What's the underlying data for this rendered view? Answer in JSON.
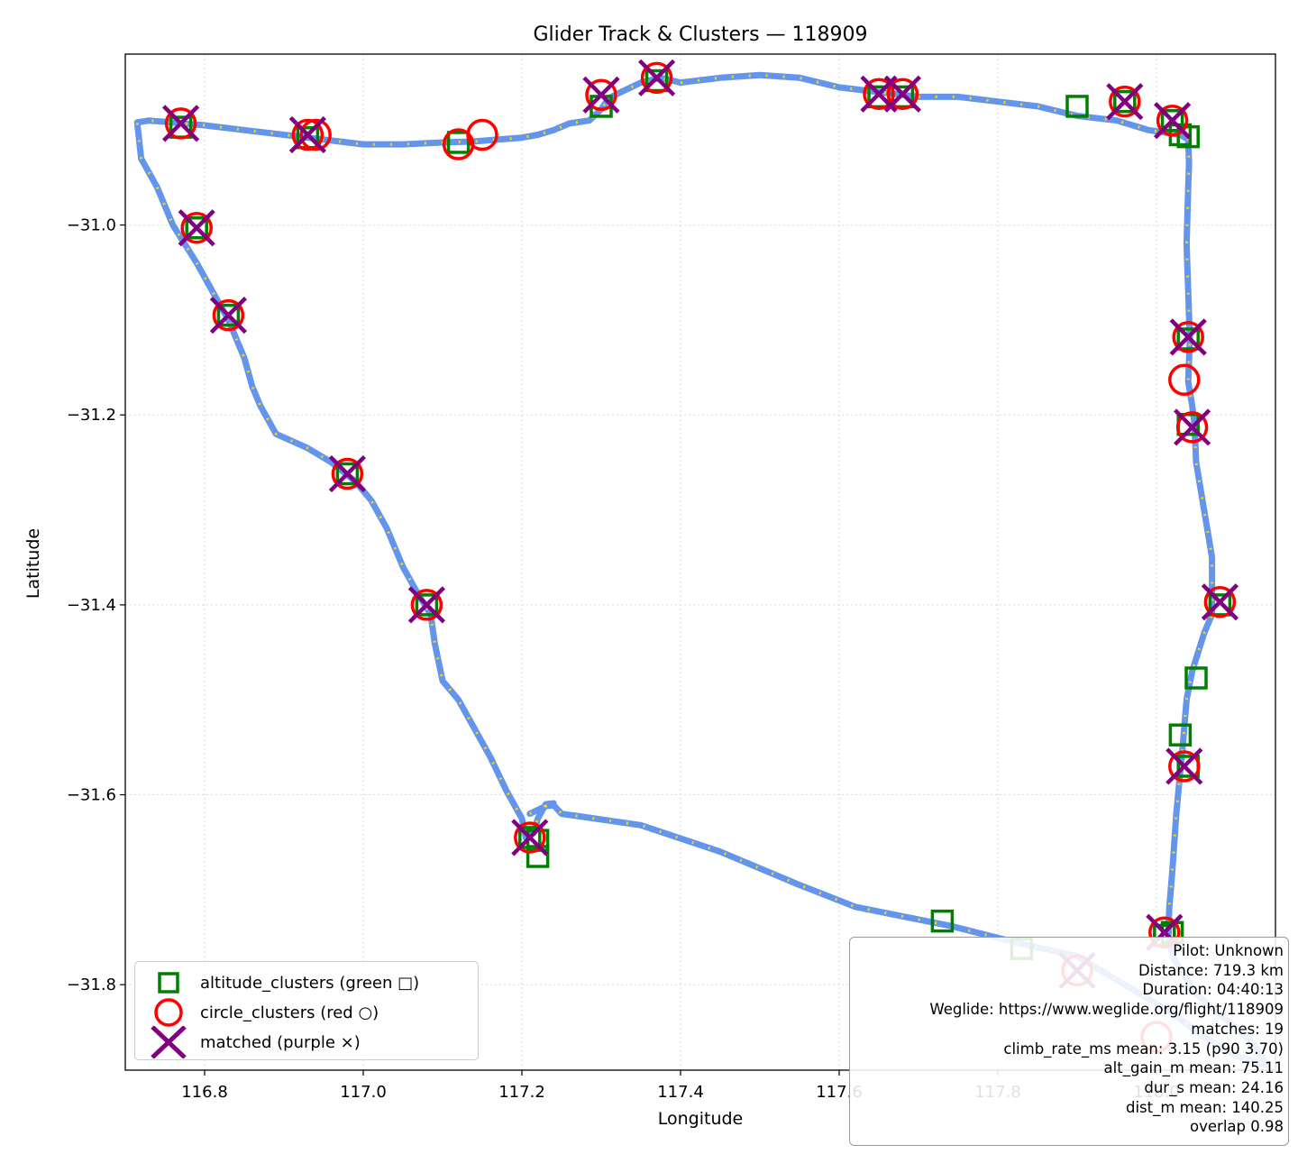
{
  "chart_data": {
    "type": "scatter",
    "title": "Glider Track & Clusters — 118909",
    "xlabel": "Longitude",
    "ylabel": "Latitude",
    "xlim": [
      116.7,
      118.15
    ],
    "ylim": [
      -31.89,
      -30.82
    ],
    "x_ticks": [
      116.8,
      117.0,
      117.2,
      117.4,
      117.6,
      117.8,
      118.0
    ],
    "x_tick_labels": [
      "116.8",
      "117.0",
      "117.2",
      "117.4",
      "117.6",
      "117.8",
      "118.0"
    ],
    "y_ticks": [
      -31.0,
      -31.2,
      -31.4,
      -31.6,
      -31.8
    ],
    "y_tick_labels": [
      "−31.0",
      "−31.2",
      "−31.4",
      "−31.6",
      "−31.8"
    ],
    "grid": true,
    "legend_position": "lower-left",
    "colors": {
      "track": "#6495ED",
      "track_highlight": "#FFD700",
      "altitude": "#008000",
      "circle": "#FF0000",
      "matched": "#800080"
    },
    "track": [
      [
        117.21,
        -31.62
      ],
      [
        117.23,
        -31.612
      ],
      [
        117.24,
        -31.611
      ],
      [
        117.25,
        -31.62
      ],
      [
        117.35,
        -31.632
      ],
      [
        117.45,
        -31.66
      ],
      [
        117.55,
        -31.695
      ],
      [
        117.62,
        -31.718
      ],
      [
        117.68,
        -31.728
      ],
      [
        117.74,
        -31.738
      ],
      [
        117.82,
        -31.755
      ],
      [
        117.9,
        -31.77
      ],
      [
        117.96,
        -31.8
      ],
      [
        118.02,
        -31.83
      ],
      [
        118.06,
        -31.855
      ],
      [
        118.1,
        -31.875
      ],
      [
        118.14,
        -31.885
      ],
      [
        118.12,
        -31.86
      ],
      [
        118.05,
        -31.81
      ],
      [
        118.02,
        -31.77
      ],
      [
        118.015,
        -31.75
      ],
      [
        118.016,
        -31.72
      ],
      [
        118.02,
        -31.68
      ],
      [
        118.025,
        -31.62
      ],
      [
        118.03,
        -31.575
      ],
      [
        118.033,
        -31.55
      ],
      [
        118.038,
        -31.5
      ],
      [
        118.045,
        -31.47
      ],
      [
        118.06,
        -31.43
      ],
      [
        118.07,
        -31.41
      ],
      [
        118.07,
        -31.35
      ],
      [
        118.06,
        -31.3
      ],
      [
        118.05,
        -31.25
      ],
      [
        118.048,
        -31.21
      ],
      [
        118.045,
        -31.19
      ],
      [
        118.04,
        -31.165
      ],
      [
        118.042,
        -31.12
      ],
      [
        118.04,
        -31.07
      ],
      [
        118.038,
        -31.02
      ],
      [
        118.04,
        -30.96
      ],
      [
        118.041,
        -30.935
      ],
      [
        118.04,
        -30.91
      ],
      [
        118.03,
        -30.905
      ],
      [
        117.99,
        -30.9
      ],
      [
        117.95,
        -30.89
      ],
      [
        117.9,
        -30.885
      ],
      [
        117.85,
        -30.875
      ],
      [
        117.8,
        -30.87
      ],
      [
        117.75,
        -30.865
      ],
      [
        117.7,
        -30.865
      ],
      [
        117.65,
        -30.86
      ],
      [
        117.6,
        -30.855
      ],
      [
        117.55,
        -30.845
      ],
      [
        117.5,
        -30.842
      ],
      [
        117.45,
        -30.845
      ],
      [
        117.4,
        -30.85
      ],
      [
        117.375,
        -30.845
      ],
      [
        117.35,
        -30.85
      ],
      [
        117.33,
        -30.858
      ],
      [
        117.31,
        -30.866
      ],
      [
        117.3,
        -30.878
      ],
      [
        117.285,
        -30.89
      ],
      [
        117.26,
        -30.893
      ],
      [
        117.24,
        -30.9
      ],
      [
        117.22,
        -30.905
      ],
      [
        117.2,
        -30.908
      ],
      [
        117.17,
        -30.91
      ],
      [
        117.14,
        -30.912
      ],
      [
        117.1,
        -30.913
      ],
      [
        117.05,
        -30.915
      ],
      [
        117.0,
        -30.915
      ],
      [
        116.95,
        -30.91
      ],
      [
        116.9,
        -30.905
      ],
      [
        116.85,
        -30.9
      ],
      [
        116.8,
        -30.895
      ],
      [
        116.76,
        -30.892
      ],
      [
        116.73,
        -30.89
      ],
      [
        116.715,
        -30.892
      ],
      [
        116.72,
        -30.93
      ],
      [
        116.74,
        -30.96
      ],
      [
        116.76,
        -31.0
      ],
      [
        116.79,
        -31.04
      ],
      [
        116.81,
        -31.07
      ],
      [
        116.83,
        -31.1
      ],
      [
        116.85,
        -31.14
      ],
      [
        116.86,
        -31.17
      ],
      [
        116.87,
        -31.19
      ],
      [
        116.89,
        -31.22
      ],
      [
        116.93,
        -31.235
      ],
      [
        116.96,
        -31.25
      ],
      [
        116.99,
        -31.27
      ],
      [
        117.01,
        -31.29
      ],
      [
        117.03,
        -31.32
      ],
      [
        117.05,
        -31.36
      ],
      [
        117.07,
        -31.39
      ],
      [
        117.085,
        -31.41
      ],
      [
        117.09,
        -31.44
      ],
      [
        117.1,
        -31.48
      ],
      [
        117.12,
        -31.5
      ],
      [
        117.14,
        -31.53
      ],
      [
        117.16,
        -31.56
      ],
      [
        117.18,
        -31.595
      ],
      [
        117.2,
        -31.625
      ],
      [
        117.205,
        -31.645
      ],
      [
        117.215,
        -31.64
      ],
      [
        117.22,
        -31.625
      ],
      [
        117.23,
        -31.61
      ],
      [
        117.24,
        -31.609
      ]
    ],
    "series": [
      {
        "name": "altitude_clusters (green □)",
        "marker": "square",
        "points": [
          [
            116.77,
            -30.897
          ],
          [
            116.79,
            -31.003
          ],
          [
            116.83,
            -31.095
          ],
          [
            116.93,
            -30.908
          ],
          [
            116.98,
            -31.262
          ],
          [
            117.08,
            -31.4
          ],
          [
            117.12,
            -30.913
          ],
          [
            117.21,
            -31.645
          ],
          [
            117.22,
            -31.648
          ],
          [
            117.22,
            -31.665
          ],
          [
            117.3,
            -30.875
          ],
          [
            117.37,
            -30.848
          ],
          [
            117.65,
            -30.865
          ],
          [
            117.68,
            -30.865
          ],
          [
            117.73,
            -31.733
          ],
          [
            117.83,
            -31.762
          ],
          [
            117.9,
            -30.875
          ],
          [
            117.96,
            -30.87
          ],
          [
            118.02,
            -30.89
          ],
          [
            118.03,
            -30.905
          ],
          [
            118.04,
            -30.907
          ],
          [
            118.04,
            -31.12
          ],
          [
            118.04,
            -31.21
          ],
          [
            118.03,
            -31.537
          ],
          [
            118.05,
            -31.477
          ],
          [
            118.08,
            -31.4
          ],
          [
            118.02,
            -31.745
          ],
          [
            118.01,
            -31.748
          ],
          [
            118.04,
            -31.57
          ]
        ]
      },
      {
        "name": "circle_clusters (red ○)",
        "marker": "circle",
        "points": [
          [
            116.77,
            -30.893
          ],
          [
            116.79,
            -31.003
          ],
          [
            116.83,
            -31.095
          ],
          [
            116.93,
            -30.905
          ],
          [
            116.94,
            -30.905
          ],
          [
            116.98,
            -31.262
          ],
          [
            117.08,
            -31.4
          ],
          [
            117.12,
            -30.915
          ],
          [
            117.15,
            -30.905
          ],
          [
            117.21,
            -31.645
          ],
          [
            117.3,
            -30.863
          ],
          [
            117.37,
            -30.845
          ],
          [
            117.65,
            -30.862
          ],
          [
            117.68,
            -30.862
          ],
          [
            117.9,
            -31.785
          ],
          [
            118.0,
            -31.855
          ],
          [
            117.96,
            -30.87
          ],
          [
            118.02,
            -30.89
          ],
          [
            118.04,
            -31.118
          ],
          [
            118.035,
            -31.163
          ],
          [
            118.045,
            -31.213
          ],
          [
            118.08,
            -31.397
          ],
          [
            118.035,
            -31.57
          ],
          [
            118.01,
            -31.745
          ]
        ]
      },
      {
        "name": "matched (purple ×)",
        "marker": "x",
        "points": [
          [
            116.77,
            -30.893
          ],
          [
            116.79,
            -31.003
          ],
          [
            116.83,
            -31.095
          ],
          [
            116.93,
            -30.905
          ],
          [
            116.98,
            -31.262
          ],
          [
            117.08,
            -31.4
          ],
          [
            117.21,
            -31.645
          ],
          [
            117.37,
            -30.845
          ],
          [
            117.65,
            -30.862
          ],
          [
            117.68,
            -30.862
          ],
          [
            117.9,
            -31.785
          ],
          [
            117.96,
            -30.87
          ],
          [
            118.02,
            -30.89
          ],
          [
            118.04,
            -31.118
          ],
          [
            118.045,
            -31.213
          ],
          [
            118.08,
            -31.397
          ],
          [
            118.035,
            -31.57
          ],
          [
            118.01,
            -31.745
          ],
          [
            117.3,
            -30.863
          ]
        ]
      }
    ]
  },
  "info": {
    "pilot": "Pilot: Unknown",
    "distance": "Distance: 719.3 km",
    "duration": "Duration: 04:40:13",
    "weglide": "Weglide: https://www.weglide.org/flight/118909",
    "matches": "matches: 19",
    "climb": "climb_rate_ms mean: 3.15 (p90 3.70)",
    "alt_gain": "alt_gain_m mean: 75.11",
    "dur": "dur_s mean: 24.16",
    "dist": "dist_m mean: 140.25",
    "overlap": "overlap 0.98"
  }
}
